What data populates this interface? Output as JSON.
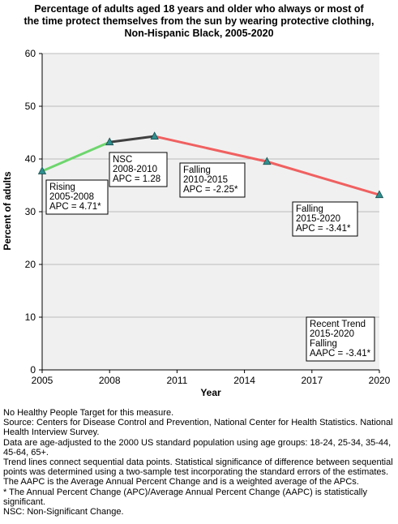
{
  "chart_data": {
    "type": "line",
    "title_lines": [
      "Percentage of adults aged 18 years and older who always or most of",
      "the time protect themselves from the sun by wearing protective clothing,",
      "Non-Hispanic Black,  2005-2020"
    ],
    "xlabel": "Year",
    "ylabel": "Percent of adults",
    "xlim": [
      2005,
      2020
    ],
    "ylim": [
      0,
      60
    ],
    "x_ticks": [
      2005,
      2008,
      2011,
      2014,
      2017,
      2020
    ],
    "y_ticks": [
      0,
      10,
      20,
      30,
      40,
      50,
      60
    ],
    "grid": "horizontal",
    "points": [
      {
        "x": 2005,
        "y": 37.7
      },
      {
        "x": 2008,
        "y": 43.2
      },
      {
        "x": 2010,
        "y": 44.3
      },
      {
        "x": 2015,
        "y": 39.5
      },
      {
        "x": 2020,
        "y": 33.2
      }
    ],
    "segments": [
      {
        "from": 2005,
        "to": 2008,
        "color": "#6dd66d",
        "label_lines": [
          "Rising",
          "2005-2008",
          "APC =  4.71*"
        ]
      },
      {
        "from": 2008,
        "to": 2010,
        "color": "#404040",
        "label_lines": [
          "NSC",
          "2008-2010",
          "APC =  1.28"
        ]
      },
      {
        "from": 2010,
        "to": 2015,
        "color": "#f06060",
        "label_lines": [
          "Falling",
          "2010-2015",
          "APC = -2.25*"
        ]
      },
      {
        "from": 2015,
        "to": 2020,
        "color": "#f06060",
        "label_lines": [
          "Falling",
          "2015-2020",
          "APC = -3.41*"
        ]
      }
    ],
    "trend_box_lines": [
      "Recent Trend",
      "2015-2020",
      "Falling",
      "AAPC = -3.41*"
    ],
    "marker_color": "#2f8f8f"
  },
  "notes": [
    "No Healthy People Target for this measure.",
    "Source: Centers for Disease Control and Prevention, National Center for Health Statistics. National Health Interview Survey.",
    "Data are age-adjusted to the 2000 US standard population using age groups: 18-24, 25-34, 35-44, 45-64, 65+.",
    "Trend lines connect sequential data points. Statistical significance of difference between sequential points was determined using a two-sample test incorporating the standard errors of the estimates.",
    "The AAPC is the Average Annual Percent Change and is a weighted average of the APCs.",
    "* The Annual Percent Change (APC)/Average Annual Percent Change (AAPC) is statistically significant.",
    "NSC: Non-Significant Change."
  ]
}
